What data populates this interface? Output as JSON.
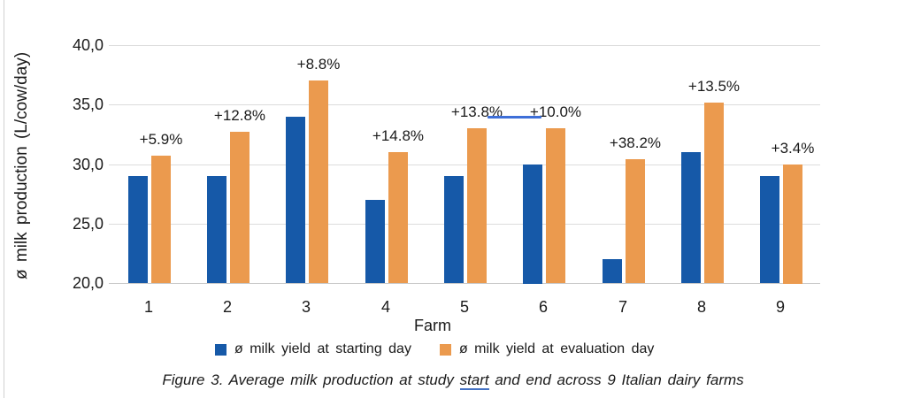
{
  "chart_data": {
    "type": "bar",
    "grouped": true,
    "categories": [
      "1",
      "2",
      "3",
      "4",
      "5",
      "6",
      "7",
      "8",
      "9"
    ],
    "series": [
      {
        "name": "ø milk yield at starting day",
        "color": "#1659a8",
        "values": [
          29.0,
          29.0,
          34.0,
          27.0,
          29.0,
          30.0,
          22.0,
          31.0,
          29.0
        ]
      },
      {
        "name": "ø milk yield at evaluation day",
        "color": "#eb9a4e",
        "values": [
          30.7,
          32.7,
          37.0,
          31.0,
          33.0,
          33.0,
          30.4,
          35.2,
          30.0
        ]
      }
    ],
    "bar_labels": [
      "+5.9%",
      "+12.8%",
      "+8.8%",
      "+14.8%",
      "+13.8%",
      "+10.0%",
      "+38.2%",
      "+13.5%",
      "+3.4%"
    ],
    "title": "",
    "xlabel": "Farm",
    "ylabel": "ø milk production (L/cow/day)",
    "ylim": [
      20,
      40
    ],
    "y_axis": {
      "tick_values": [
        40,
        35,
        30,
        25,
        20
      ],
      "tick_labels": [
        "40,0",
        "35,0",
        "30,0",
        "25,0",
        "20,0"
      ]
    },
    "grid": true,
    "gridline_color": "#dcdcdc",
    "legend_position": "bottom"
  },
  "annotation": {
    "underline_color": "#3e6fd8"
  },
  "caption": {
    "prefix": "Figure 3. Average milk production at study ",
    "underlined_word": "start",
    "suffix": " and end across 9 Italian dairy farms"
  }
}
